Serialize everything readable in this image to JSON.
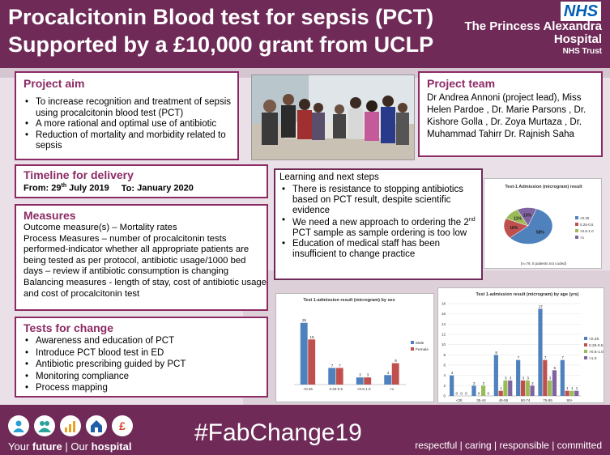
{
  "header": {
    "title_line1": "Procalcitonin Blood test for sepsis (PCT)",
    "title_line2": "Supported by a £10,000 grant from UCLP",
    "nhs_logo": "NHS",
    "org_line1": "The Princess Alexandra",
    "org_line2": "Hospital",
    "org_line3": "NHS Trust"
  },
  "project_aim": {
    "title": "Project aim",
    "items": [
      "To increase recognition and treatment of sepsis using procalcitonin blood test (PCT)",
      "A more rational and optimal use of antibiotic",
      "Reduction of mortality and morbidity related to sepsis"
    ]
  },
  "project_team": {
    "title": "Project team",
    "text": "Dr Andrea Annoni (project lead), Miss Helen Pardoe , Dr. Marie Parsons , Dr. Kishore Golla , Dr. Zoya Murtaza , Dr. Muhammad Tahirr Dr. Rajnish Saha"
  },
  "timeline": {
    "title": "Timeline for delivery",
    "from_label": "From:",
    "from_day": "29",
    "from_sup": "th",
    "from_rest": "July  2019",
    "to_label": "To:",
    "to_value": "January 2020"
  },
  "learning": {
    "title": "Learning and next steps",
    "item1": "There is resistance to stopping antibiotics based on PCT result, despite scientific evidence",
    "item2_pre": "We need a new approach to ordering the 2",
    "item2_sup": "nd",
    "item2_post": " PCT sample as sample ordering is too low",
    "item3": "Education of medical staff has been insufficient to change practice"
  },
  "measures": {
    "title": "Measures",
    "outcome": "Outcome measure(s) – Mortality rates",
    "process": "Process Measures – number of procalcitonin tests performed-indicator whether all appropriate patients are being  tested as per protocol, antibiotic usage/1000 bed days – review if antibiotic consumption is changing",
    "balancing": "Balancing measures -  length of stay, cost of antibiotic usage and cost of procalcitonin test"
  },
  "tests": {
    "title": "Tests for change",
    "items": [
      "Awareness and education of PCT",
      "Introduce PCT blood test in ED",
      "Antibiotic prescribing guided by PCT",
      "Monitoring compliance",
      "Process mapping"
    ]
  },
  "charts_text": {
    "pie_footnote": "(n=79, 6 patients not coded)"
  },
  "chart_data": [
    {
      "type": "pie",
      "title": "Test-1 Admission (microgram) result",
      "labels": [
        "<0.25",
        "0.25-0.5",
        ">0.5-1.0",
        ">1"
      ],
      "values": [
        58,
        18,
        11,
        13
      ],
      "data_labels": [
        "58%",
        "18%",
        "11%",
        "13%"
      ],
      "colors": [
        "#4f81bd",
        "#c0504d",
        "#9bbb59",
        "#8064a2"
      ],
      "legend_position": "right"
    },
    {
      "type": "bar",
      "title": "Test 1-admission result (microgram) by sex",
      "categories": [
        "<0.25",
        "0.25-0.5",
        ">0.5-1.0",
        ">1"
      ],
      "series": [
        {
          "name": "Male",
          "values": [
            26,
            7,
            3,
            4
          ],
          "color": "#4f81bd"
        },
        {
          "name": "Female",
          "values": [
            19,
            7,
            3,
            9
          ],
          "color": "#c0504d"
        }
      ],
      "ylim": [
        0,
        30
      ],
      "legend_position": "right"
    },
    {
      "type": "bar",
      "title": "Test 1-admission result (microgram) by age (yrs)",
      "categories": [
        "<35",
        "35-44",
        "45-59",
        "60-74",
        "75-89",
        "90+"
      ],
      "series": [
        {
          "name": "<0.25",
          "values": [
            4,
            2,
            8,
            7,
            17,
            7
          ],
          "color": "#4f81bd"
        },
        {
          "name": "0.25-0.5",
          "values": [
            0,
            0,
            1,
            3,
            7,
            1
          ],
          "color": "#c0504d"
        },
        {
          "name": ">0.5-1.0",
          "values": [
            0,
            2,
            3,
            3,
            3,
            1
          ],
          "color": "#9bbb59"
        },
        {
          "name": ">1.0",
          "values": [
            0,
            0,
            3,
            2,
            5,
            1
          ],
          "color": "#8064a2"
        }
      ],
      "ylim": [
        0,
        18
      ],
      "yticks": [
        0,
        2,
        4,
        6,
        8,
        10,
        12,
        14,
        16,
        18
      ],
      "legend_position": "right"
    }
  ],
  "footer": {
    "hashtag": "#FabChange19",
    "tagline_a": "Your ",
    "tagline_b": "future",
    "tagline_c": " | Our ",
    "tagline_d": "hospital",
    "values": "respectful  |  caring  |  responsible  |  committed"
  }
}
